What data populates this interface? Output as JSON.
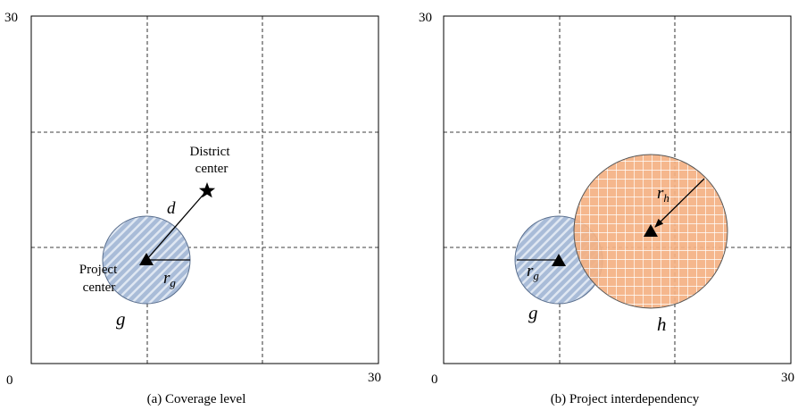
{
  "panel_a": {
    "caption": "(a) Coverage level",
    "axis_max_y": "30",
    "axis_max_x": "30",
    "origin": "0",
    "district_center_line1": "District",
    "district_center_line2": "center",
    "distance_label": "d",
    "project_center_line1": "Project",
    "project_center_line2": "center",
    "radius_label": "r",
    "radius_sub": "g",
    "circle_label": "g"
  },
  "panel_b": {
    "caption": "(b) Project interdependency",
    "axis_max_y": "30",
    "axis_max_x": "30",
    "origin": "0",
    "radius_g_label": "r",
    "radius_g_sub": "g",
    "radius_h_label": "r",
    "radius_h_sub": "h",
    "circle_g_label": "g",
    "circle_h_label": "h"
  },
  "colors": {
    "blue_fill": "#a9bcd8",
    "blue_stroke": "#5a6f8e",
    "orange_fill": "#f4b183",
    "orange_stroke": "#5a5a5a"
  }
}
